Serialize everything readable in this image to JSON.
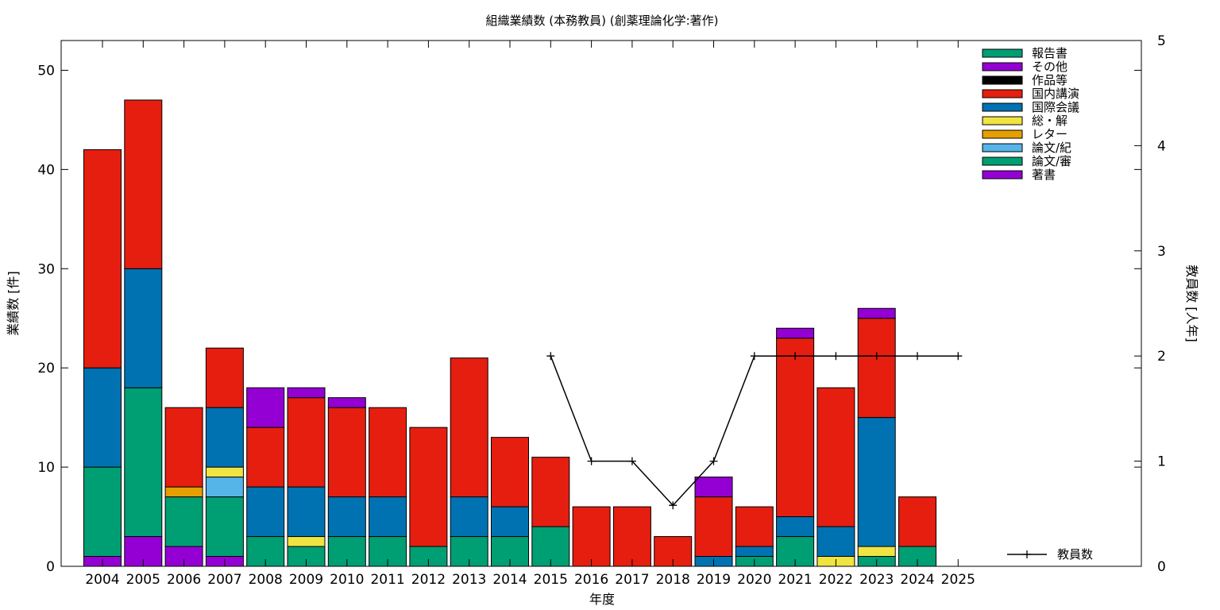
{
  "chart_data": {
    "type": "bar",
    "title": "組織業績数 (本務教員) (創薬理論化学:著作)",
    "xlabel": "年度",
    "ylabel": "業績数 [件]",
    "y2label": "教員数 [人年]",
    "categories": [
      "2004",
      "2005",
      "2006",
      "2007",
      "2008",
      "2009",
      "2010",
      "2011",
      "2012",
      "2013",
      "2014",
      "2015",
      "2016",
      "2017",
      "2018",
      "2019",
      "2020",
      "2021",
      "2022",
      "2023",
      "2024",
      "2025"
    ],
    "ylim": [
      0,
      53
    ],
    "yticks": [
      0,
      10,
      20,
      30,
      40,
      50
    ],
    "y2lim": [
      0,
      5
    ],
    "y2ticks": [
      0,
      1,
      2,
      3,
      4,
      5
    ],
    "stacked": true,
    "stack_order": [
      "著書",
      "論文/審",
      "論文/紀",
      "レター",
      "総・解",
      "国際会議",
      "国内講演",
      "作品等",
      "その他",
      "報告書"
    ],
    "series": [
      {
        "name": "報告書",
        "color": "#009e73",
        "values": [
          0,
          0,
          0,
          0,
          0,
          0,
          0,
          0,
          0,
          0,
          0,
          0,
          0,
          0,
          0,
          0,
          0,
          0,
          0,
          0,
          0,
          0
        ]
      },
      {
        "name": "その他",
        "color": "#9400d3",
        "values": [
          0,
          0,
          0,
          0,
          4,
          1,
          1,
          0,
          0,
          0,
          0,
          0,
          0,
          0,
          0,
          2,
          0,
          1,
          0,
          1,
          0,
          0
        ]
      },
      {
        "name": "作品等",
        "color": "#000000",
        "values": [
          0,
          0,
          0,
          0,
          0,
          0,
          0,
          0,
          0,
          0,
          0,
          0,
          0,
          0,
          0,
          0,
          0,
          0,
          0,
          0,
          0,
          0
        ]
      },
      {
        "name": "国内講演",
        "color": "#e51e10",
        "values": [
          22,
          17,
          8,
          6,
          6,
          9,
          9,
          9,
          12,
          14,
          7,
          7,
          6,
          6,
          3,
          6,
          4,
          18,
          14,
          10,
          5,
          0
        ]
      },
      {
        "name": "国際会議",
        "color": "#0072b2",
        "values": [
          10,
          12,
          0,
          6,
          5,
          5,
          4,
          4,
          0,
          4,
          3,
          0,
          0,
          0,
          0,
          1,
          1,
          2,
          3,
          13,
          0,
          0
        ]
      },
      {
        "name": "総・解",
        "color": "#f0e442",
        "values": [
          0,
          0,
          0,
          1,
          0,
          1,
          0,
          0,
          0,
          0,
          0,
          0,
          0,
          0,
          0,
          0,
          0,
          0,
          1,
          1,
          0,
          0
        ]
      },
      {
        "name": "レター",
        "color": "#e69f00",
        "values": [
          0,
          0,
          1,
          0,
          0,
          0,
          0,
          0,
          0,
          0,
          0,
          0,
          0,
          0,
          0,
          0,
          0,
          0,
          0,
          0,
          0,
          0
        ]
      },
      {
        "name": "論文/紀",
        "color": "#56b4e9",
        "values": [
          0,
          0,
          0,
          2,
          0,
          0,
          0,
          0,
          0,
          0,
          0,
          0,
          0,
          0,
          0,
          0,
          0,
          0,
          0,
          0,
          0,
          0
        ]
      },
      {
        "name": "論文/審",
        "color": "#009e73",
        "values": [
          9,
          15,
          5,
          6,
          3,
          2,
          3,
          3,
          2,
          3,
          3,
          4,
          0,
          0,
          0,
          0,
          1,
          3,
          0,
          1,
          2,
          0
        ]
      },
      {
        "name": "著書",
        "color": "#9400d3",
        "values": [
          1,
          3,
          2,
          1,
          0,
          0,
          0,
          0,
          0,
          0,
          0,
          0,
          0,
          0,
          0,
          0,
          0,
          0,
          0,
          0,
          0,
          0
        ]
      }
    ],
    "line_series": {
      "name": "教員数",
      "axis": "y2",
      "color": "#000000",
      "x": [
        "2015",
        "2016",
        "2017",
        "2018",
        "2019",
        "2020",
        "2021",
        "2022",
        "2023",
        "2024",
        "2025"
      ],
      "values": [
        2,
        1,
        1,
        0.58,
        1,
        2,
        2,
        2,
        2,
        2,
        2
      ]
    },
    "grid": false,
    "legend_position": "top-right"
  }
}
